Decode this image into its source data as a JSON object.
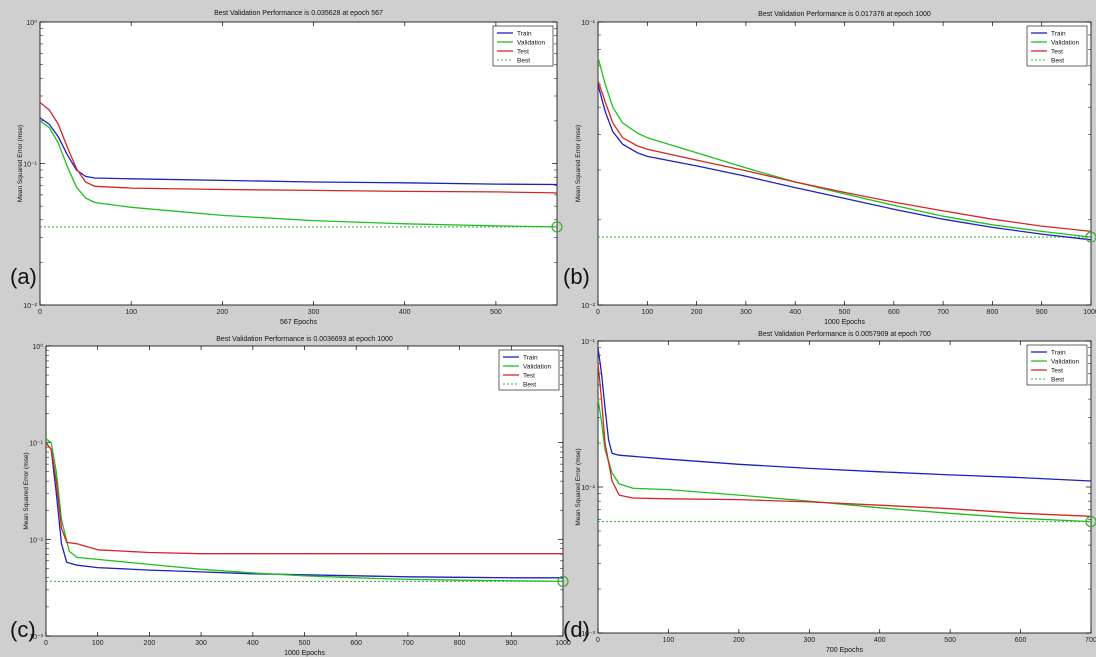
{
  "colors": {
    "train": "#1f1fbf",
    "validation": "#1fbf1f",
    "test": "#d42626",
    "best": "#3aa83a",
    "figure_bg": "#cfcfcf",
    "axes_bg": "#ffffff"
  },
  "legend_labels": [
    "Train",
    "Validation",
    "Test",
    "Best"
  ],
  "chart_data": [
    {
      "type": "line",
      "panel_label": "(a)",
      "title": "Best Validation Performance is 0.035628 at epoch 567",
      "xlabel": "567 Epochs",
      "ylabel": "Mean Squared Error  (mse)",
      "xlim": [
        0,
        567
      ],
      "ylim": [
        0.01,
        1
      ],
      "yscale": "log",
      "xticks": [
        0,
        100,
        200,
        300,
        400,
        500
      ],
      "yticks": [
        {
          "value": 0.01,
          "label": "10⁻²"
        },
        {
          "value": 0.1,
          "label": "10⁻¹"
        },
        {
          "value": 1,
          "label": "10⁰"
        }
      ],
      "legend": "top-right",
      "best": {
        "epoch": 567,
        "value": 0.035628
      },
      "series": [
        {
          "name": "Train",
          "points": [
            [
              0,
              0.21
            ],
            [
              10,
              0.19
            ],
            [
              20,
              0.155
            ],
            [
              30,
              0.115
            ],
            [
              40,
              0.09
            ],
            [
              50,
              0.081
            ],
            [
              60,
              0.079
            ],
            [
              100,
              0.078
            ],
            [
              200,
              0.076
            ],
            [
              300,
              0.074
            ],
            [
              400,
              0.073
            ],
            [
              500,
              0.0715
            ],
            [
              567,
              0.071
            ]
          ]
        },
        {
          "name": "Validation",
          "points": [
            [
              0,
              0.2
            ],
            [
              10,
              0.18
            ],
            [
              20,
              0.14
            ],
            [
              30,
              0.095
            ],
            [
              40,
              0.068
            ],
            [
              50,
              0.057
            ],
            [
              60,
              0.053
            ],
            [
              100,
              0.049
            ],
            [
              200,
              0.043
            ],
            [
              300,
              0.0395
            ],
            [
              400,
              0.0375
            ],
            [
              500,
              0.0362
            ],
            [
              567,
              0.035628
            ]
          ]
        },
        {
          "name": "Test",
          "points": [
            [
              0,
              0.27
            ],
            [
              10,
              0.24
            ],
            [
              20,
              0.19
            ],
            [
              30,
              0.13
            ],
            [
              40,
              0.092
            ],
            [
              50,
              0.074
            ],
            [
              60,
              0.069
            ],
            [
              100,
              0.067
            ],
            [
              200,
              0.0655
            ],
            [
              300,
              0.0645
            ],
            [
              400,
              0.0635
            ],
            [
              500,
              0.063
            ],
            [
              567,
              0.062
            ]
          ]
        }
      ]
    },
    {
      "type": "line",
      "panel_label": "(b)",
      "title": "Best Validation Performance is 0.017376 at epoch 1000",
      "xlabel": "1000 Epochs",
      "ylabel": "Mean Squared Error  (mse)",
      "xlim": [
        0,
        1000
      ],
      "ylim": [
        0.01,
        0.1
      ],
      "yscale": "log",
      "xticks": [
        0,
        100,
        200,
        300,
        400,
        500,
        600,
        700,
        800,
        900,
        1000
      ],
      "yticks": [
        {
          "value": 0.01,
          "label": "10⁻²"
        },
        {
          "value": 0.1,
          "label": "10⁻¹"
        }
      ],
      "legend": "top-right",
      "best": {
        "epoch": 1000,
        "value": 0.017376
      },
      "series": [
        {
          "name": "Train",
          "points": [
            [
              0,
              0.06
            ],
            [
              15,
              0.048
            ],
            [
              30,
              0.041
            ],
            [
              50,
              0.037
            ],
            [
              80,
              0.0345
            ],
            [
              100,
              0.0335
            ],
            [
              200,
              0.031
            ],
            [
              300,
              0.0285
            ],
            [
              400,
              0.026
            ],
            [
              500,
              0.0238
            ],
            [
              600,
              0.0218
            ],
            [
              700,
              0.0201
            ],
            [
              800,
              0.0188
            ],
            [
              900,
              0.0178
            ],
            [
              1000,
              0.017
            ]
          ]
        },
        {
          "name": "Validation",
          "points": [
            [
              0,
              0.075
            ],
            [
              15,
              0.06
            ],
            [
              30,
              0.05
            ],
            [
              50,
              0.044
            ],
            [
              80,
              0.0405
            ],
            [
              100,
              0.039
            ],
            [
              200,
              0.0345
            ],
            [
              300,
              0.0305
            ],
            [
              400,
              0.0272
            ],
            [
              500,
              0.0247
            ],
            [
              600,
              0.0225
            ],
            [
              700,
              0.0206
            ],
            [
              800,
              0.0192
            ],
            [
              900,
              0.0182
            ],
            [
              1000,
              0.017376
            ]
          ]
        },
        {
          "name": "Test",
          "points": [
            [
              0,
              0.062
            ],
            [
              15,
              0.052
            ],
            [
              30,
              0.044
            ],
            [
              50,
              0.039
            ],
            [
              80,
              0.0365
            ],
            [
              100,
              0.0355
            ],
            [
              200,
              0.0325
            ],
            [
              300,
              0.0298
            ],
            [
              400,
              0.0272
            ],
            [
              500,
              0.025
            ],
            [
              600,
              0.0231
            ],
            [
              700,
              0.0215
            ],
            [
              800,
              0.0201
            ],
            [
              900,
              0.019
            ],
            [
              1000,
              0.0182
            ]
          ]
        }
      ]
    },
    {
      "type": "line",
      "panel_label": "(c)",
      "title": "Best Validation Performance is 0.0036693 at epoch 1000",
      "xlabel": "1000 Epochs",
      "ylabel": "Mean Squared Error  (mse)",
      "xlim": [
        0,
        1000
      ],
      "ylim": [
        0.001,
        1
      ],
      "yscale": "log",
      "xticks": [
        0,
        100,
        200,
        300,
        400,
        500,
        600,
        700,
        800,
        900,
        1000
      ],
      "yticks": [
        {
          "value": 0.001,
          "label": "10⁻³"
        },
        {
          "value": 0.01,
          "label": "10⁻²"
        },
        {
          "value": 0.1,
          "label": "10⁻¹"
        },
        {
          "value": 1,
          "label": "10⁰"
        }
      ],
      "legend": "top-right",
      "best": {
        "epoch": 1000,
        "value": 0.0036693
      },
      "series": [
        {
          "name": "Train",
          "points": [
            [
              0,
              0.1
            ],
            [
              10,
              0.085
            ],
            [
              20,
              0.03
            ],
            [
              30,
              0.009
            ],
            [
              40,
              0.0058
            ],
            [
              60,
              0.0054
            ],
            [
              100,
              0.0051
            ],
            [
              200,
              0.0048
            ],
            [
              300,
              0.0046
            ],
            [
              400,
              0.0044
            ],
            [
              500,
              0.0043
            ],
            [
              600,
              0.0042
            ],
            [
              700,
              0.0041
            ],
            [
              800,
              0.00405
            ],
            [
              900,
              0.004
            ],
            [
              1000,
              0.004
            ]
          ]
        },
        {
          "name": "Validation",
          "points": [
            [
              0,
              0.11
            ],
            [
              10,
              0.1
            ],
            [
              20,
              0.05
            ],
            [
              30,
              0.016
            ],
            [
              45,
              0.0075
            ],
            [
              60,
              0.0065
            ],
            [
              100,
              0.0062
            ],
            [
              200,
              0.0055
            ],
            [
              300,
              0.0049
            ],
            [
              400,
              0.0045
            ],
            [
              500,
              0.0042
            ],
            [
              600,
              0.004
            ],
            [
              700,
              0.00385
            ],
            [
              800,
              0.00378
            ],
            [
              900,
              0.00372
            ],
            [
              1000,
              0.0036693
            ]
          ]
        },
        {
          "name": "Test",
          "points": [
            [
              0,
              0.1
            ],
            [
              10,
              0.085
            ],
            [
              20,
              0.04
            ],
            [
              30,
              0.013
            ],
            [
              40,
              0.0093
            ],
            [
              60,
              0.009
            ],
            [
              100,
              0.0078
            ],
            [
              200,
              0.0073
            ],
            [
              300,
              0.0071
            ],
            [
              400,
              0.0071
            ],
            [
              500,
              0.0071
            ],
            [
              600,
              0.0071
            ],
            [
              700,
              0.0071
            ],
            [
              800,
              0.0071
            ],
            [
              900,
              0.0071
            ],
            [
              1000,
              0.0071
            ]
          ]
        }
      ]
    },
    {
      "type": "line",
      "panel_label": "(d)",
      "title": "Best Validation Performance is 0.0057909 at epoch 700",
      "xlabel": "700 Epochs",
      "ylabel": "Mean Squared Error  (mse)",
      "xlim": [
        0,
        700
      ],
      "ylim": [
        0.001,
        0.1
      ],
      "yscale": "log",
      "xticks": [
        0,
        100,
        200,
        300,
        400,
        500,
        600,
        700
      ],
      "yticks": [
        {
          "value": 0.001,
          "label": "10⁻³"
        },
        {
          "value": 0.01,
          "label": "10⁻²"
        },
        {
          "value": 0.1,
          "label": "10⁻¹"
        }
      ],
      "legend": "top-right",
      "best": {
        "epoch": 700,
        "value": 0.0057909
      },
      "series": [
        {
          "name": "Train",
          "points": [
            [
              0,
              0.09
            ],
            [
              5,
              0.06
            ],
            [
              10,
              0.035
            ],
            [
              15,
              0.021
            ],
            [
              20,
              0.017
            ],
            [
              30,
              0.0165
            ],
            [
              100,
              0.0155
            ],
            [
              200,
              0.0143
            ],
            [
              300,
              0.0134
            ],
            [
              400,
              0.0127
            ],
            [
              500,
              0.0121
            ],
            [
              600,
              0.0116
            ],
            [
              700,
              0.011
            ]
          ]
        },
        {
          "name": "Validation",
          "points": [
            [
              0,
              0.04
            ],
            [
              5,
              0.028
            ],
            [
              10,
              0.018
            ],
            [
              20,
              0.0125
            ],
            [
              30,
              0.0105
            ],
            [
              50,
              0.0098
            ],
            [
              100,
              0.0096
            ],
            [
              200,
              0.0088
            ],
            [
              300,
              0.008
            ],
            [
              400,
              0.0072
            ],
            [
              500,
              0.0066
            ],
            [
              600,
              0.0061
            ],
            [
              700,
              0.0057909
            ]
          ]
        },
        {
          "name": "Test",
          "points": [
            [
              0,
              0.07
            ],
            [
              5,
              0.04
            ],
            [
              10,
              0.02
            ],
            [
              20,
              0.011
            ],
            [
              30,
              0.0088
            ],
            [
              50,
              0.0084
            ],
            [
              100,
              0.0083
            ],
            [
              200,
              0.0082
            ],
            [
              300,
              0.0079
            ],
            [
              400,
              0.0075
            ],
            [
              500,
              0.0071
            ],
            [
              600,
              0.0066
            ],
            [
              700,
              0.0063
            ]
          ]
        }
      ]
    }
  ]
}
